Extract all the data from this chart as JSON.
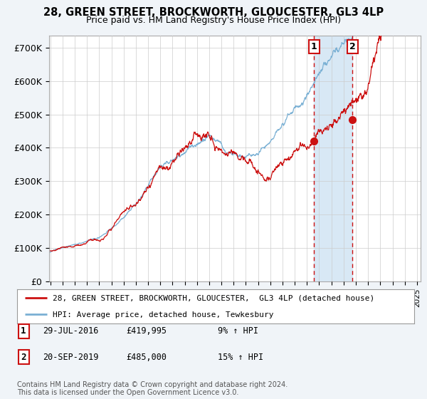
{
  "title": "28, GREEN STREET, BROCKWORTH, GLOUCESTER, GL3 4LP",
  "subtitle": "Price paid vs. HM Land Registry's House Price Index (HPI)",
  "ylabel_ticks": [
    "£0",
    "£100K",
    "£200K",
    "£300K",
    "£400K",
    "£500K",
    "£600K",
    "£700K"
  ],
  "ytick_values": [
    0,
    100000,
    200000,
    300000,
    400000,
    500000,
    600000,
    700000
  ],
  "ylim": [
    0,
    735000
  ],
  "xlim_start": 1994.9,
  "xlim_end": 2025.3,
  "line1_color": "#cc1111",
  "line2_color": "#7ab0d4",
  "shade_color": "#d8e8f5",
  "marker1_date": 2016.57,
  "marker1_value": 419995,
  "marker2_date": 2019.72,
  "marker2_value": 485000,
  "annotation1_label": "1",
  "annotation2_label": "2",
  "legend_line1": "28, GREEN STREET, BROCKWORTH, GLOUCESTER,  GL3 4LP (detached house)",
  "legend_line2": "HPI: Average price, detached house, Tewkesbury",
  "background_color": "#f0f4f8",
  "plot_bg_color": "#ffffff",
  "grid_color": "#cccccc",
  "footer": "Contains HM Land Registry data © Crown copyright and database right 2024.\nThis data is licensed under the Open Government Licence v3.0."
}
